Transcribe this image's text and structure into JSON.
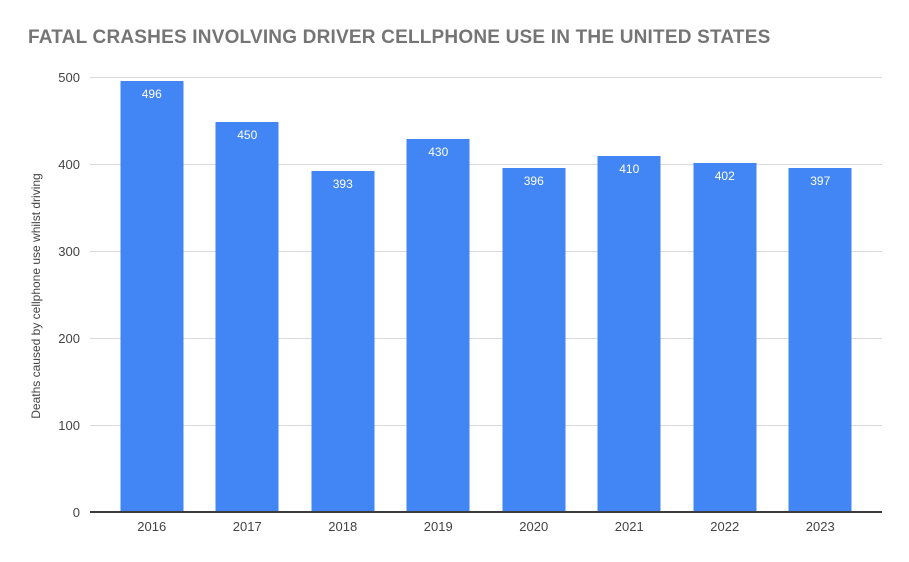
{
  "chart_data": {
    "type": "bar",
    "title": "FATAL CRASHES INVOLVING DRIVER CELLPHONE USE IN THE UNITED STATES",
    "categories": [
      "2016",
      "2017",
      "2018",
      "2019",
      "2020",
      "2021",
      "2022",
      "2023"
    ],
    "values": [
      496,
      450,
      393,
      430,
      396,
      410,
      402,
      397
    ],
    "xlabel": "",
    "ylabel": "Deaths caused by cellphone use whilst driving",
    "ylim": [
      0,
      500
    ],
    "yticks": [
      0,
      100,
      200,
      300,
      400,
      500
    ],
    "grid": true,
    "legend_position": "none",
    "data_labels": "inside-top",
    "colors": {
      "bar": "#4285f4",
      "data_label": "#ffffff",
      "title": "#757575",
      "gridline": "#d9d9d9",
      "axis_line": "#3c3c3c",
      "tick_label": "#444444",
      "background": "#ffffff"
    }
  }
}
